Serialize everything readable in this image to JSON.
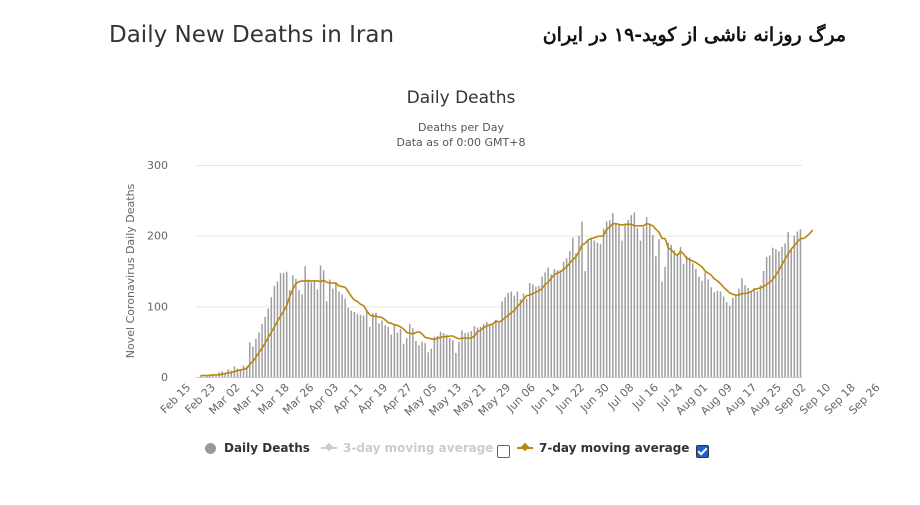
{
  "header": {
    "title": "Daily New Deaths in Iran",
    "persian_title": "مرگ روزانه ناشی از کوید-۱۹ در ایران"
  },
  "legend": {
    "daily": "Daily Deaths",
    "avg3": "3-day moving average",
    "avg7": "7-day moving average",
    "avg3_checked": false,
    "avg7_checked": true
  },
  "colors": {
    "bars": "#9e9e9e",
    "avg7": "#b8860b",
    "avg3_disabled": "#cccccc",
    "checkbox": "#1d5fd6"
  },
  "chart_data": {
    "type": "bar",
    "title": "Daily Deaths",
    "subtitle": [
      "Deaths per Day",
      "Data as of 0:00 GMT+8"
    ],
    "ylabel": "Novel Coronavirus Daily Deaths",
    "xlabel": "",
    "ylim": [
      0,
      300
    ],
    "yticks": [
      0,
      100,
      200,
      300
    ],
    "grid": true,
    "legend_position": "bottom",
    "x_start": "2020-02-19",
    "x_end": "2020-09-30",
    "xtick_labels": [
      "Feb 15",
      "Feb 23",
      "Mar 02",
      "Mar 10",
      "Mar 18",
      "Mar 26",
      "Apr 03",
      "Apr 11",
      "Apr 19",
      "Apr 27",
      "May 05",
      "May 13",
      "May 21",
      "May 29",
      "Jun 06",
      "Jun 14",
      "Jun 22",
      "Jun 30",
      "Jul 08",
      "Jul 16",
      "Jul 24",
      "Aug 01",
      "Aug 09",
      "Aug 17",
      "Aug 25",
      "Sep 02",
      "Sep 10",
      "Sep 18",
      "Sep 26"
    ],
    "series": [
      {
        "name": "Daily Deaths",
        "values": [
          2,
          0,
          2,
          4,
          4,
          3,
          7,
          8,
          5,
          11,
          9,
          15,
          12,
          11,
          16,
          15,
          49,
          43,
          54,
          63,
          75,
          85,
          97,
          113,
          129,
          135,
          147,
          147,
          149,
          123,
          144,
          139,
          123,
          117,
          157,
          138,
          134,
          136,
          124,
          158,
          151,
          107,
          138,
          125,
          133,
          121,
          117,
          111,
          98,
          94,
          92,
          89,
          88,
          87,
          94,
          71,
          90,
          91,
          76,
          80,
          73,
          71,
          60,
          74,
          63,
          68,
          47,
          55,
          75,
          69,
          51,
          45,
          50,
          48,
          35,
          40,
          57,
          58,
          64,
          62,
          60,
          55,
          52,
          34,
          50,
          66,
          62,
          63,
          65,
          72,
          70,
          71,
          75,
          78,
          75,
          75,
          81,
          79,
          107,
          113,
          119,
          121,
          115,
          121,
          110,
          118,
          111,
          133,
          131,
          128,
          129,
          142,
          148,
          155,
          145,
          153,
          151,
          151,
          163,
          168,
          178,
          197,
          175,
          200,
          220,
          150,
          194,
          197,
          193,
          190,
          188,
          210,
          220,
          222,
          232,
          218,
          215,
          193,
          216,
          222,
          229,
          233,
          211,
          193,
          212,
          226,
          215,
          201,
          171,
          195,
          135,
          156,
          190,
          187,
          179,
          174,
          184,
          160,
          171,
          169,
          161,
          153,
          142,
          136,
          148,
          138,
          127,
          120,
          122,
          121,
          114,
          106,
          101,
          112,
          115,
          125,
          140,
          130,
          126,
          121,
          126,
          122,
          130,
          150,
          170,
          172,
          183,
          181,
          178,
          184,
          189,
          205,
          181,
          200,
          206,
          209
        ]
      },
      {
        "name": "7-day moving average",
        "values": [
          2,
          2,
          2,
          2,
          3,
          3,
          3,
          4,
          5,
          6,
          6,
          8,
          9,
          10,
          11,
          12,
          18,
          22,
          28,
          35,
          41,
          48,
          56,
          63,
          71,
          79,
          86,
          93,
          101,
          114,
          124,
          132,
          135,
          136,
          136,
          136,
          136,
          136,
          136,
          135,
          137,
          134,
          133,
          133,
          133,
          129,
          128,
          127,
          121,
          114,
          109,
          107,
          103,
          101,
          94,
          88,
          86,
          86,
          85,
          84,
          81,
          77,
          76,
          74,
          73,
          71,
          68,
          63,
          62,
          61,
          63,
          64,
          61,
          56,
          55,
          54,
          53,
          55,
          56,
          57,
          57,
          58,
          58,
          56,
          54,
          55,
          55,
          55,
          55,
          58,
          64,
          66,
          70,
          72,
          74,
          75,
          79,
          78,
          80,
          84,
          87,
          91,
          94,
          100,
          104,
          110,
          115,
          116,
          118,
          120,
          122,
          125,
          131,
          134,
          140,
          145,
          147,
          149,
          152,
          156,
          161,
          166,
          170,
          177,
          187,
          189,
          194,
          196,
          197,
          199,
          199,
          200,
          209,
          212,
          217,
          217,
          216,
          215,
          216,
          216,
          216,
          214,
          214,
          214,
          214,
          217,
          216,
          214,
          209,
          205,
          196,
          196,
          183,
          180,
          175,
          172,
          178,
          174,
          168,
          166,
          164,
          162,
          159,
          156,
          150,
          147,
          144,
          139,
          136,
          132,
          127,
          123,
          119,
          117,
          116,
          116,
          118,
          118,
          119,
          121,
          124,
          125,
          126,
          128,
          131,
          134,
          138,
          144,
          151,
          159,
          167,
          174,
          181,
          186,
          191,
          196,
          196,
          199,
          203,
          208
        ]
      }
    ]
  }
}
